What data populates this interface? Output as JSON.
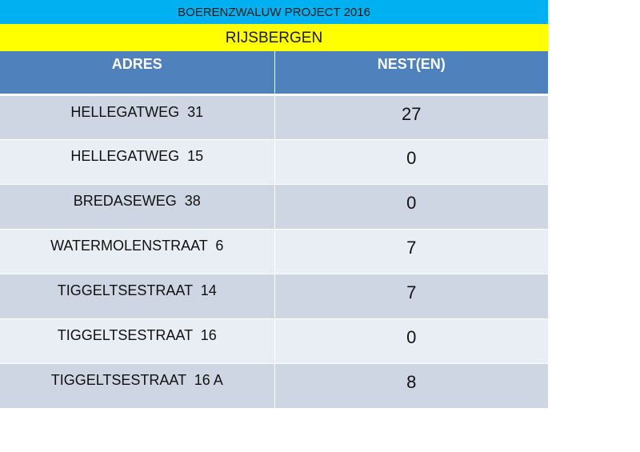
{
  "header": {
    "title": "BOERENZWALUW PROJECT 2016",
    "subtitle": "RIJSBERGEN"
  },
  "table": {
    "columns": [
      "ADRES",
      "NEST(EN)"
    ],
    "rows": [
      {
        "address": "HELLEGATWEG  31",
        "nests": "27"
      },
      {
        "address": "HELLEGATWEG  15",
        "nests": "0"
      },
      {
        "address": "BREDASEWEG  38",
        "nests": "0"
      },
      {
        "address": "WATERMOLENSTRAAT  6",
        "nests": "7"
      },
      {
        "address": "TIGGELTSESTRAAT  14",
        "nests": "7"
      },
      {
        "address": "TIGGELTSESTRAAT  16",
        "nests": "0"
      },
      {
        "address": "TIGGELTSESTRAAT  16 A",
        "nests": "8"
      }
    ]
  },
  "colors": {
    "title_bg": "#00b0f0",
    "subtitle_bg": "#ffff00",
    "header_bg": "#4f81bd",
    "row_dark": "#cfd6e3",
    "row_light": "#e9edf4"
  }
}
